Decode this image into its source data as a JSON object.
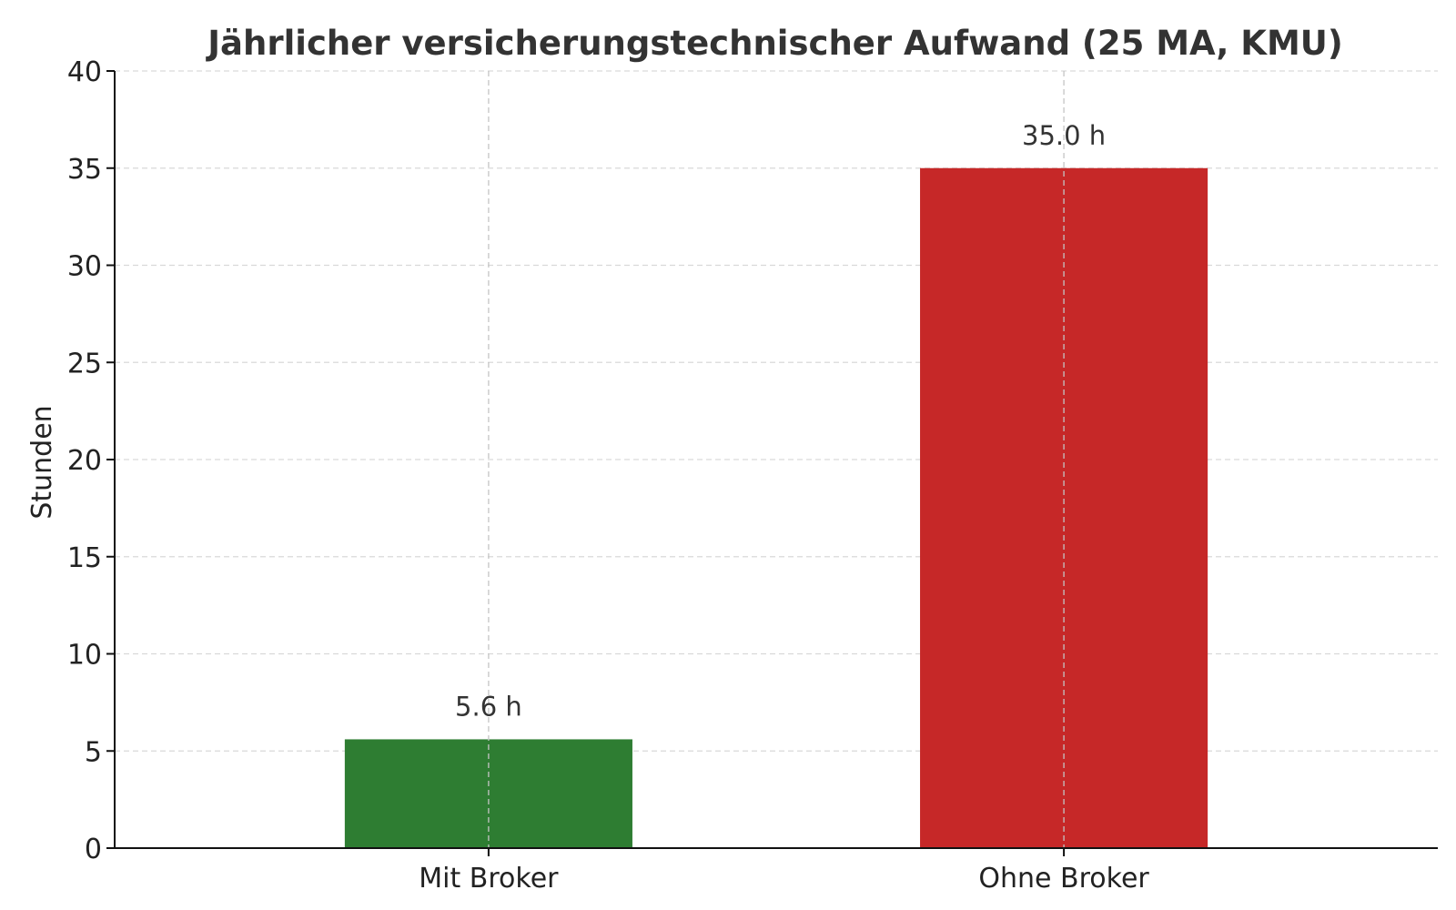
{
  "chart_data": {
    "type": "bar",
    "title": "Jährlicher versicherungstechnischer Aufwand (25 MA, KMU)",
    "xlabel": "",
    "ylabel": "Stunden",
    "categories": [
      "Mit Broker",
      "Ohne Broker"
    ],
    "values": [
      5.6,
      35.0
    ],
    "data_labels": [
      "5.6 h",
      "35.0 h"
    ],
    "colors": [
      "#2e7d32",
      "#c62828"
    ],
    "ylim": [
      0,
      40
    ],
    "yticks": [
      0,
      5,
      10,
      15,
      20,
      25,
      30,
      35,
      40
    ],
    "grid": true,
    "legend": "none"
  }
}
